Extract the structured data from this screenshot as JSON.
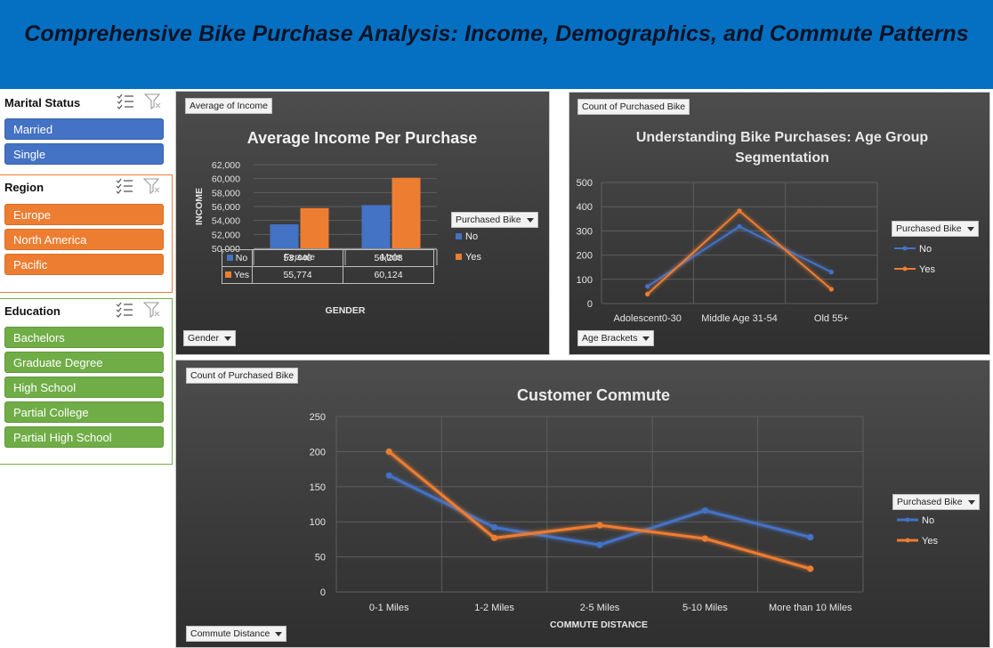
{
  "banner": {
    "title": "Comprehensive Bike Purchase Analysis: Income, Demographics, and Commute Patterns"
  },
  "slicers": {
    "marital": {
      "title": "Marital Status",
      "items": [
        "Married",
        "Single"
      ]
    },
    "region": {
      "title": "Region",
      "items": [
        "Europe",
        "North America",
        "Pacific"
      ]
    },
    "education": {
      "title": "Education",
      "items": [
        "Bachelors",
        "Graduate Degree",
        "High School",
        "Partial College",
        "Partial High School"
      ]
    }
  },
  "colors": {
    "no": "#4472c4",
    "yes": "#ed7d31",
    "banner": "#0570c1",
    "education": "#70ad47"
  },
  "icons": {
    "multi_select": "multi-select-icon",
    "clear_filter": "clear-filter-icon",
    "dropdown": "dropdown-caret-icon"
  },
  "income_chart": {
    "value_field": "Average of Income",
    "axis_field": "Gender",
    "legend_field": "Purchased Bike",
    "table_rows": [
      {
        "label": "No",
        "values": [
          "53,440",
          "56,208"
        ]
      },
      {
        "label": "Yes",
        "values": [
          "55,774",
          "60,124"
        ]
      }
    ]
  },
  "age_chart": {
    "value_field": "Count of Purchased Bike",
    "axis_field": "Age Brackets",
    "legend_field": "Purchased Bike"
  },
  "commute_chart": {
    "value_field": "Count of Purchased Bike",
    "axis_field": "Commute Distance",
    "legend_field": "Purchased Bike"
  },
  "chart_data": [
    {
      "type": "bar",
      "title": "Average Income Per Purchase",
      "xlabel": "GENDER",
      "ylabel": "INCOME",
      "categories": [
        "Female",
        "Male"
      ],
      "series": [
        {
          "name": "No",
          "values": [
            53440,
            56208
          ]
        },
        {
          "name": "Yes",
          "values": [
            55774,
            60124
          ]
        }
      ],
      "ylim": [
        50000,
        62000
      ],
      "yticks": [
        "50,000",
        "52,000",
        "54,000",
        "56,000",
        "58,000",
        "60,000",
        "62,000"
      ],
      "legend_position": "right",
      "grid": true
    },
    {
      "type": "line",
      "title": "Understanding Bike Purchases: Age Group Segmentation",
      "xlabel": "",
      "ylabel": "",
      "categories": [
        "Adolescent0-30",
        "Middle Age 31-54",
        "Old 55+"
      ],
      "series": [
        {
          "name": "No",
          "values": [
            71,
            318,
            130
          ]
        },
        {
          "name": "Yes",
          "values": [
            39,
            383,
            59
          ]
        }
      ],
      "ylim": [
        0,
        500
      ],
      "yticks": [
        "0",
        "100",
        "200",
        "300",
        "400",
        "500"
      ],
      "legend_position": "right",
      "grid": true
    },
    {
      "type": "line",
      "title": "Customer Commute",
      "xlabel": "COMMUTE DISTANCE",
      "ylabel": "",
      "categories": [
        "0-1 Miles",
        "1-2 Miles",
        "2-5 Miles",
        "5-10 Miles",
        "More than 10 Miles"
      ],
      "series": [
        {
          "name": "No",
          "values": [
            166,
            92,
            67,
            116,
            78
          ]
        },
        {
          "name": "Yes",
          "values": [
            200,
            77,
            95,
            76,
            33
          ]
        }
      ],
      "ylim": [
        0,
        250
      ],
      "yticks": [
        "0",
        "50",
        "100",
        "150",
        "200",
        "250"
      ],
      "legend_position": "right",
      "grid": true
    }
  ]
}
